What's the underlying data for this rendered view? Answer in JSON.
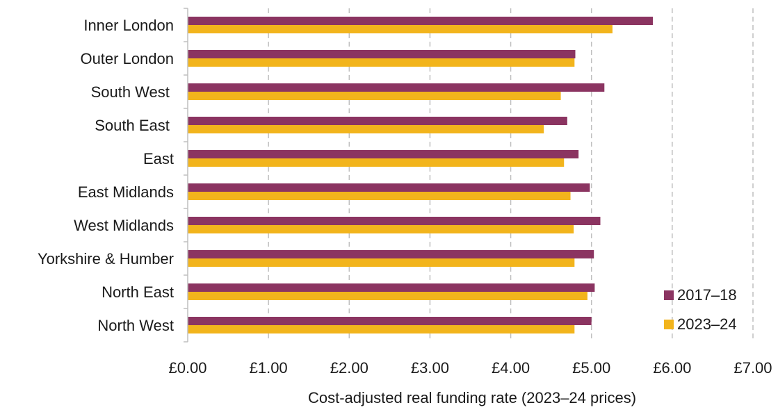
{
  "chart_data": {
    "type": "bar",
    "orientation": "horizontal",
    "title": "",
    "xlabel": "Cost-adjusted real funding rate (2023–24 prices)",
    "ylabel": "",
    "categories": [
      "Inner London",
      "Outer London",
      "South West ",
      "South East ",
      "East",
      "East Midlands",
      "West Midlands",
      "Yorkshire & Humber",
      "North East",
      "North West"
    ],
    "series": [
      {
        "name": "2017–18",
        "color": "#8B3461",
        "values": [
          5.76,
          4.8,
          5.16,
          4.7,
          4.84,
          4.98,
          5.11,
          5.03,
          5.04,
          5.0
        ]
      },
      {
        "name": "2023–24",
        "color": "#F2B41C",
        "values": [
          5.26,
          4.79,
          4.62,
          4.41,
          4.66,
          4.74,
          4.78,
          4.79,
          4.95,
          4.79
        ]
      }
    ],
    "xlim": [
      0,
      7
    ],
    "xticks": [
      0,
      1,
      2,
      3,
      4,
      5,
      6,
      7
    ],
    "xtick_labels": [
      "£0.00",
      "£1.00",
      "£2.00",
      "£3.00",
      "£4.00",
      "£5.00",
      "£6.00",
      "£7.00"
    ],
    "grid": "vertical dashed",
    "legend_position": "bottom-right"
  }
}
